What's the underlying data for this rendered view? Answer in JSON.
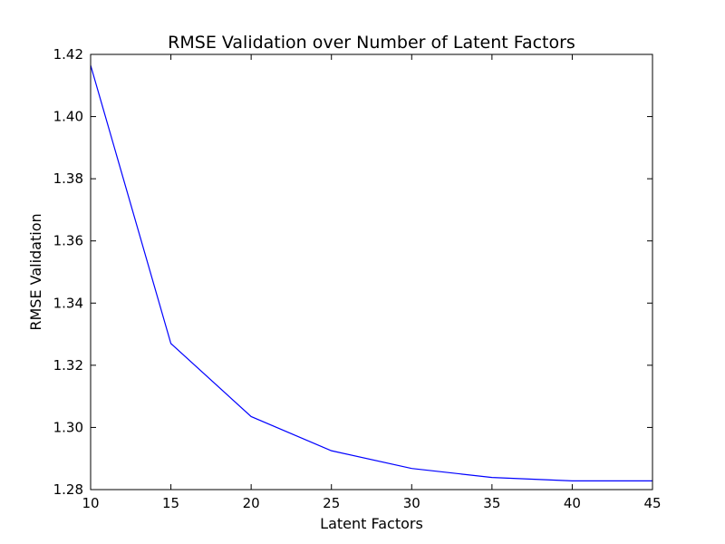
{
  "chart_data": {
    "type": "line",
    "title": "RMSE Validation over Number of Latent Factors",
    "xlabel": "Latent Factors",
    "ylabel": "RMSE Validation",
    "xlim": [
      10,
      45
    ],
    "ylim": [
      1.28,
      1.42
    ],
    "x_ticks": [
      "10",
      "15",
      "20",
      "25",
      "30",
      "35",
      "40",
      "45"
    ],
    "y_ticks": [
      "1.28",
      "1.30",
      "1.32",
      "1.34",
      "1.36",
      "1.38",
      "1.40",
      "1.42"
    ],
    "grid": false,
    "series": [
      {
        "color": "#0000ff",
        "x": [
          10,
          15,
          20,
          25,
          30,
          35,
          40,
          45
        ],
        "y": [
          1.4165,
          1.327,
          1.3035,
          1.2925,
          1.2868,
          1.2839,
          1.2828,
          1.2828
        ]
      }
    ]
  }
}
